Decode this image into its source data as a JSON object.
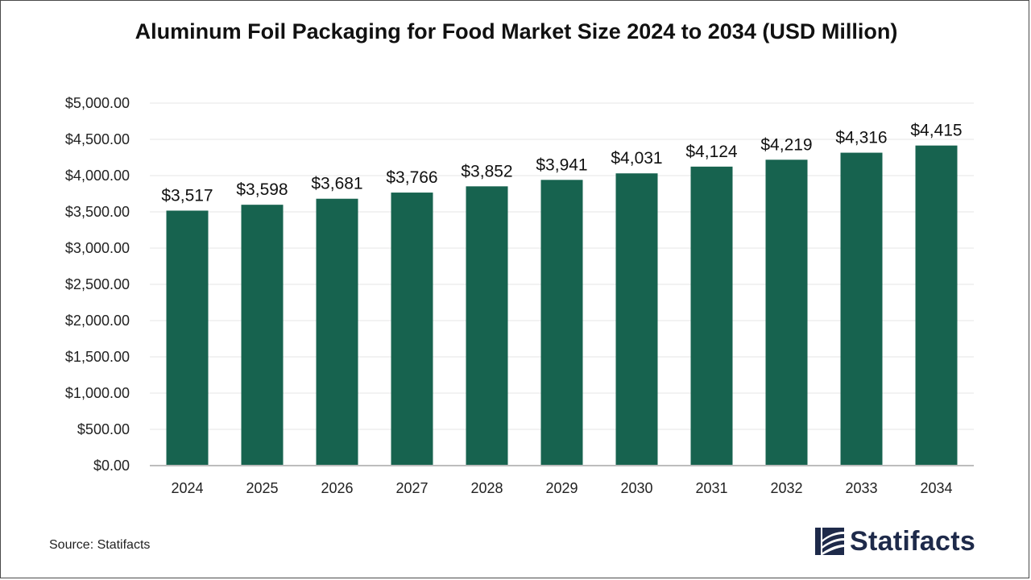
{
  "chart_data": {
    "type": "bar",
    "title": "Aluminum Foil Packaging for Food Market Size 2024 to 2034 (USD Million)",
    "categories": [
      "2024",
      "2025",
      "2026",
      "2027",
      "2028",
      "2029",
      "2030",
      "2031",
      "2032",
      "2033",
      "2034"
    ],
    "values": [
      3517,
      3598,
      3681,
      3766,
      3852,
      3941,
      4031,
      4124,
      4219,
      4316,
      4415
    ],
    "value_labels": [
      "$3,517",
      "$3,598",
      "$3,681",
      "$3,766",
      "$3,852",
      "$3,941",
      "$4,031",
      "$4,124",
      "$4,219",
      "$4,316",
      "$4,415"
    ],
    "y_ticks": [
      0,
      500,
      1000,
      1500,
      2000,
      2500,
      3000,
      3500,
      4000,
      4500,
      5000
    ],
    "y_tick_labels": [
      "$0.00",
      "$500.00",
      "$1,000.00",
      "$1,500.00",
      "$2,000.00",
      "$2,500.00",
      "$3,000.00",
      "$3,500.00",
      "$4,000.00",
      "$4,500.00",
      "$5,000.00"
    ],
    "ylim": [
      0,
      5000
    ],
    "xlabel": "",
    "ylabel": "",
    "grid": true,
    "legend": "none",
    "bar_color": "#17634f"
  },
  "source": "Source: Statifacts",
  "brand": {
    "name": "Statifacts",
    "color": "#1e2a4a",
    "icon": "statifacts-logo-icon"
  }
}
